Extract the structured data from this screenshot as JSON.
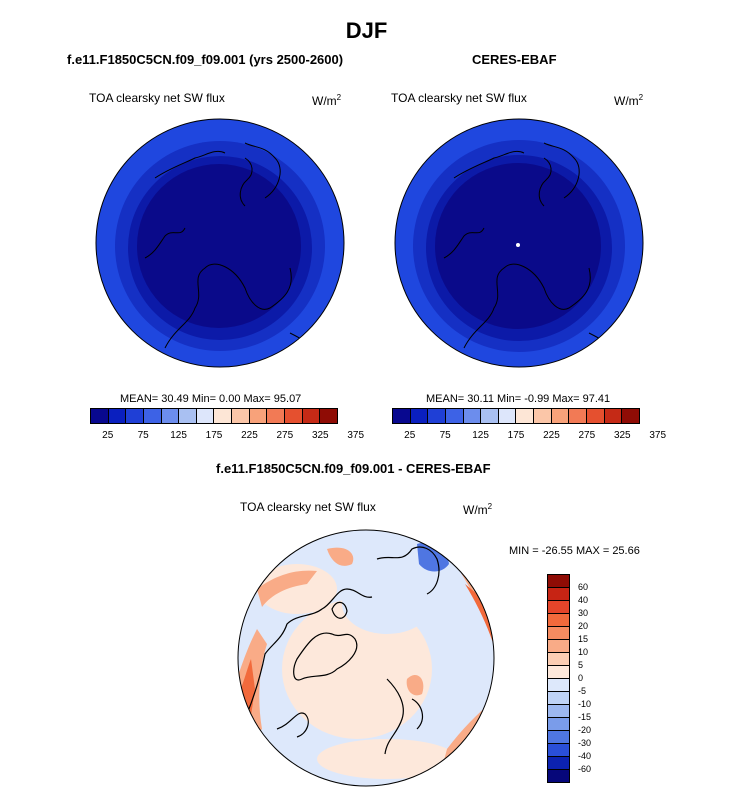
{
  "figure": {
    "title": "DJF"
  },
  "panel_left": {
    "title": "f.e11.F1850C5CN.f09_f09.001 (yrs 2500-2600)",
    "variable": "TOA clearsky net SW flux",
    "units_base": "W/m",
    "units_exp": "2",
    "stats": "MEAN=  30.49  Min=   0.00  Max=  95.07"
  },
  "panel_right": {
    "title": "CERES-EBAF",
    "variable": "TOA clearsky net SW flux",
    "units_base": "W/m",
    "units_exp": "2",
    "stats": "MEAN=  30.11  Min=  -0.99  Max=  97.41"
  },
  "panel_diff": {
    "title": "f.e11.F1850C5CN.f09_f09.001 - CERES-EBAF",
    "variable": "TOA clearsky net SW flux",
    "units_base": "W/m",
    "units_exp": "2",
    "stats": "MIN = -26.55 MAX =  25.66"
  },
  "colorbar_abs": {
    "colors": [
      "#08088f",
      "#0a1fbf",
      "#1f3fd6",
      "#3d62e6",
      "#6c8ded",
      "#a9c0f2",
      "#dde6fb",
      "#fde6d6",
      "#fbc6a8",
      "#f8a27a",
      "#f27a55",
      "#e5502f",
      "#c52a16",
      "#8f0c05"
    ],
    "labels": [
      "25",
      "75",
      "125",
      "175",
      "225",
      "275",
      "325",
      "375"
    ]
  },
  "colorbar_diff": {
    "colors": [
      "#8f0c05",
      "#c72414",
      "#e5452a",
      "#f26a3c",
      "#f68b60",
      "#f9ab87",
      "#fbcdb3",
      "#fde8db",
      "#dde8fb",
      "#bfd3f6",
      "#9db8f0",
      "#7a9cea",
      "#4f76e2",
      "#2a4fd8",
      "#0c22b0",
      "#06077a"
    ],
    "labels": [
      "60",
      "40",
      "30",
      "20",
      "15",
      "10",
      "5",
      "0",
      "-5",
      "-10",
      "-15",
      "-20",
      "-30",
      "-40",
      "-60"
    ]
  },
  "map_colors": {
    "abs_inner": "#0a0a8a",
    "abs_mid": "#0c1aa8",
    "abs_ring": "#1530c4",
    "abs_outer": "#1f47df",
    "diff_base": "#fde8db",
    "diff_blue": "#dde8fb",
    "diff_warm": "#f9ab87",
    "diff_hot": "#f26a3c",
    "diff_cool": "#4f76e2"
  }
}
